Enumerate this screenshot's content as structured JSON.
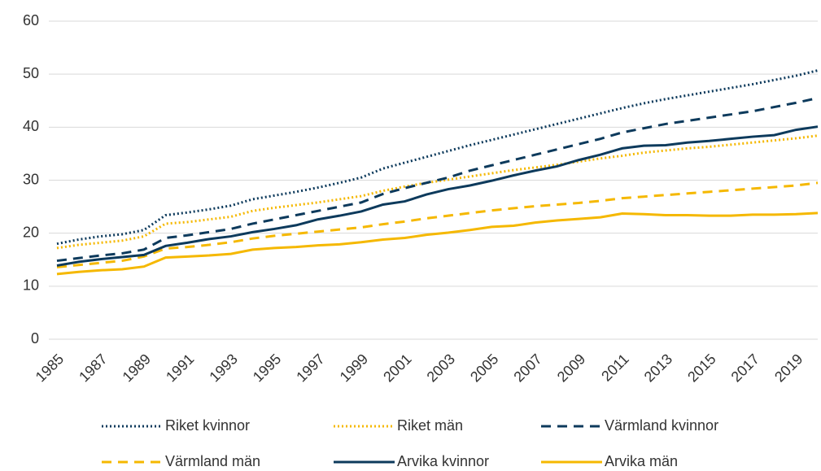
{
  "chart_data": {
    "type": "line",
    "categories": [
      "1985",
      null,
      "1987",
      null,
      "1989",
      null,
      "1991",
      null,
      "1993",
      null,
      "1995",
      null,
      "1997",
      null,
      "1999",
      null,
      "2001",
      null,
      "2003",
      null,
      "2005",
      null,
      "2007",
      null,
      "2009",
      null,
      "2011",
      null,
      "2013",
      null,
      "2015",
      null,
      "2017",
      null,
      "2019",
      null
    ],
    "ylim": [
      0,
      60
    ],
    "yticks": [
      0,
      10,
      20,
      30,
      40,
      50,
      60
    ],
    "grid": true,
    "legend": "bottom",
    "series": [
      {
        "name": "Riket kvinnor",
        "color": "#0d3a5c",
        "style": "dotted",
        "values": [
          18,
          18.8,
          19.4,
          19.8,
          20.6,
          23.4,
          23.9,
          24.5,
          25.2,
          26.4,
          27.1,
          27.8,
          28.6,
          29.5,
          30.5,
          32.2,
          33.3,
          34.4,
          35.5,
          36.6,
          37.6,
          38.6,
          39.6,
          40.6,
          41.6,
          42.6,
          43.6,
          44.5,
          45.3,
          46.0,
          46.7,
          47.4,
          48.1,
          48.9,
          49.7,
          50.7
        ]
      },
      {
        "name": "Riket män",
        "color": "#f5b800",
        "style": "dotted",
        "values": [
          17.2,
          17.8,
          18.2,
          18.6,
          19.4,
          21.8,
          22.1,
          22.6,
          23.1,
          24.2,
          24.8,
          25.3,
          25.8,
          26.4,
          27.0,
          28.0,
          28.8,
          29.5,
          30.1,
          30.7,
          31.3,
          31.9,
          32.4,
          32.9,
          33.5,
          34.1,
          34.6,
          35.2,
          35.6,
          36.0,
          36.3,
          36.7,
          37.1,
          37.5,
          37.9,
          38.4
        ]
      },
      {
        "name": "Värmland kvinnor",
        "color": "#0d3a5c",
        "style": "dashed",
        "values": [
          14.8,
          15.3,
          15.8,
          16.2,
          16.9,
          19.1,
          19.6,
          20.2,
          20.8,
          21.8,
          22.6,
          23.4,
          24.2,
          25.0,
          25.8,
          27.4,
          28.5,
          29.5,
          30.5,
          31.8,
          32.8,
          33.8,
          34.8,
          35.8,
          36.8,
          37.8,
          39.0,
          39.8,
          40.6,
          41.2,
          41.8,
          42.4,
          43.0,
          43.8,
          44.6,
          45.5
        ]
      },
      {
        "name": "Värmland män",
        "color": "#f5b800",
        "style": "dashed",
        "values": [
          13.6,
          14.0,
          14.4,
          14.8,
          15.6,
          17.1,
          17.4,
          17.8,
          18.3,
          19.0,
          19.5,
          19.9,
          20.3,
          20.7,
          21.1,
          21.7,
          22.2,
          22.8,
          23.3,
          23.8,
          24.3,
          24.7,
          25.1,
          25.4,
          25.7,
          26.1,
          26.6,
          26.9,
          27.2,
          27.5,
          27.8,
          28.1,
          28.4,
          28.7,
          29.0,
          29.5
        ]
      },
      {
        "name": "Arvika kvinnor",
        "color": "#0d3a5c",
        "style": "solid",
        "values": [
          13.9,
          14.6,
          15.1,
          15.5,
          15.9,
          17.6,
          18.2,
          18.9,
          19.4,
          20.2,
          20.8,
          21.5,
          22.6,
          23.3,
          24.1,
          25.4,
          26.0,
          27.3,
          28.3,
          29.0,
          29.9,
          30.9,
          31.8,
          32.6,
          33.8,
          34.8,
          36.0,
          36.5,
          36.6,
          37.1,
          37.4,
          37.8,
          38.2,
          38.5,
          39.5,
          40.1
        ]
      },
      {
        "name": "Arvika män",
        "color": "#f5b800",
        "style": "solid",
        "values": [
          12.3,
          12.7,
          13.0,
          13.2,
          13.7,
          15.4,
          15.6,
          15.8,
          16.1,
          16.9,
          17.2,
          17.4,
          17.7,
          17.9,
          18.3,
          18.8,
          19.1,
          19.7,
          20.1,
          20.6,
          21.2,
          21.4,
          22.0,
          22.4,
          22.7,
          23.0,
          23.7,
          23.6,
          23.4,
          23.4,
          23.3,
          23.3,
          23.5,
          23.5,
          23.6,
          23.8
        ]
      }
    ]
  }
}
